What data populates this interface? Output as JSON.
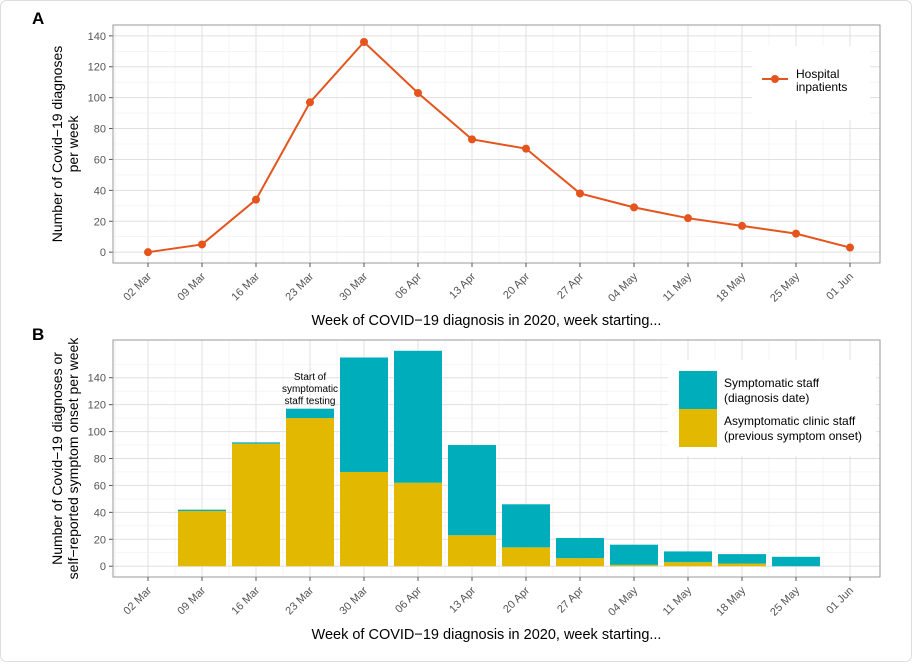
{
  "chart_data": [
    {
      "panel_label": "A",
      "type": "line",
      "categories": [
        "02 Mar",
        "09 Mar",
        "16 Mar",
        "23 Mar",
        "30 Mar",
        "06 Apr",
        "13 Apr",
        "20 Apr",
        "27 Apr",
        "04 May",
        "11 May",
        "18 May",
        "25 May",
        "01 Jun"
      ],
      "series": [
        {
          "name": "Hospital inpatients",
          "values": [
            0,
            5,
            34,
            97,
            136,
            103,
            73,
            67,
            38,
            29,
            22,
            17,
            12,
            3
          ],
          "color": "#E4541C"
        }
      ],
      "xlabel": "Week of COVID−19 diagnosis in 2020, week starting...",
      "ylabel": [
        "Number of Covid−19 diagnoses",
        "per week"
      ],
      "yticks": [
        0,
        20,
        40,
        60,
        80,
        100,
        120,
        140
      ],
      "ylim": [
        -7,
        147
      ],
      "grid": true,
      "legend_lines": [
        "Hospital",
        "inpatients"
      ],
      "legend": "top-right"
    },
    {
      "panel_label": "B",
      "type": "bar",
      "stacked": true,
      "categories": [
        "02 Mar",
        "09 Mar",
        "16 Mar",
        "23 Mar",
        "30 Mar",
        "06 Apr",
        "13 Apr",
        "20 Apr",
        "27 Apr",
        "04 May",
        "11 May",
        "18 May",
        "25 May",
        "01 Jun"
      ],
      "series": [
        {
          "name": "Asymptomatic clinic staff (previous symptom onset)",
          "legend_lines": [
            "Asymptomatic clinic staff",
            "(previous symptom onset)"
          ],
          "values": [
            0,
            41,
            91,
            110,
            70,
            62,
            23,
            14,
            6,
            1,
            3,
            2,
            0,
            0
          ],
          "color": "#E3B800"
        },
        {
          "name": "Symptomatic staff (diagnosis date)",
          "legend_lines": [
            "Symptomatic staff",
            "(diagnosis date)"
          ],
          "values": [
            0,
            1,
            1,
            7,
            85,
            98,
            67,
            32,
            15,
            15,
            8,
            7,
            7,
            0
          ],
          "color": "#00AEBB"
        }
      ],
      "annotation": [
        "Start of",
        "symptomatic",
        "staff testing"
      ],
      "xlabel": "Week of COVID−19 diagnosis in 2020, week starting...",
      "ylabel": [
        "Number of Covid−19 diagnoses or",
        "self−reported symptom onset per week"
      ],
      "yticks": [
        0,
        20,
        40,
        60,
        80,
        100,
        120,
        140
      ],
      "ylim": [
        -8,
        168
      ],
      "grid": true,
      "legend": "top-right"
    }
  ]
}
